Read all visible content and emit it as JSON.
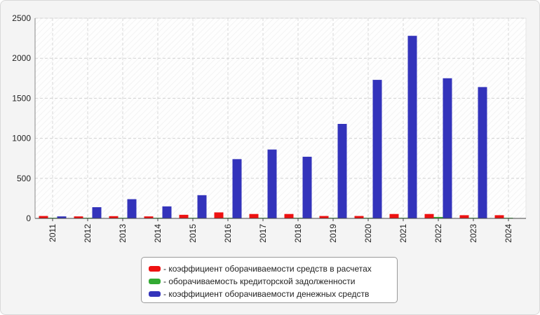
{
  "chart_data": {
    "type": "bar",
    "categories": [
      "2011",
      "2012",
      "2013",
      "2014",
      "2015",
      "2016",
      "2017",
      "2018",
      "2019",
      "2020",
      "2021",
      "2022",
      "2023",
      "2024"
    ],
    "series": [
      {
        "name": "- коэффициент оборачиваемости средств в расчетах",
        "color": "#ee1111",
        "values": [
          30,
          25,
          28,
          25,
          45,
          75,
          55,
          55,
          30,
          30,
          55,
          55,
          40,
          40
        ]
      },
      {
        "name": "- оборачиваемость кредиторской задолженности",
        "color": "#33aa33",
        "values": [
          8,
          8,
          8,
          8,
          8,
          8,
          8,
          8,
          8,
          8,
          8,
          18,
          8,
          8
        ]
      },
      {
        "name": "- коэффициент оборачиваемости денежных средств",
        "color": "#3333bb",
        "values": [
          25,
          140,
          240,
          150,
          290,
          740,
          860,
          770,
          1180,
          1730,
          2280,
          1750,
          1640,
          0
        ]
      }
    ],
    "yticks": [
      0,
      500,
      1000,
      1500,
      2000,
      2500
    ],
    "ylim": [
      0,
      2500
    ],
    "grid": true,
    "legend_position": "bottom"
  }
}
